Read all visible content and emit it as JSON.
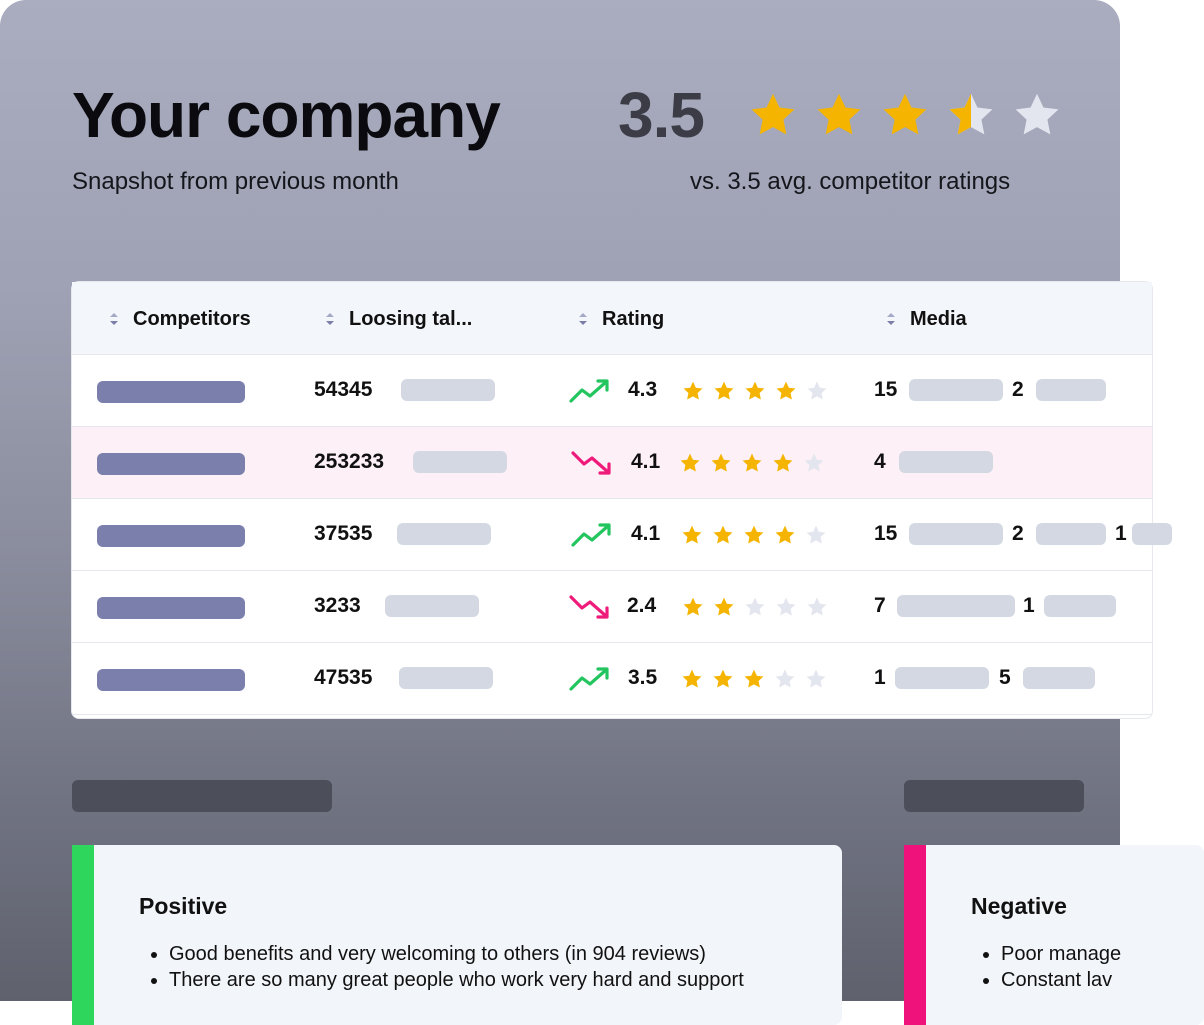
{
  "header": {
    "title": "Your company",
    "subtitle": "Snapshot from previous month",
    "score": "3.5",
    "rating_value": 3.5,
    "comparison": "vs. 3.5 avg. competitor ratings"
  },
  "table": {
    "columns": [
      "Competitors",
      "Loosing tal...",
      "Rating",
      "Media"
    ],
    "rows": [
      {
        "talent": "54345",
        "trend": "up",
        "rating": "4.3",
        "stars": 4,
        "media": [
          "15",
          "2"
        ],
        "highlight": false
      },
      {
        "talent": "253233",
        "trend": "down",
        "rating": "4.1",
        "stars": 4,
        "media": [
          "4"
        ],
        "highlight": true
      },
      {
        "talent": "37535",
        "trend": "up",
        "rating": "4.1",
        "stars": 4,
        "media": [
          "15",
          "2",
          "1"
        ],
        "highlight": false
      },
      {
        "talent": "3233",
        "trend": "down",
        "rating": "2.4",
        "stars": 2,
        "media": [
          "7",
          "1"
        ],
        "highlight": false
      },
      {
        "talent": "47535",
        "trend": "up",
        "rating": "3.5",
        "stars": 3,
        "media": [
          "1",
          "5"
        ],
        "highlight": false
      }
    ]
  },
  "positive": {
    "title": "Positive",
    "items": [
      "Good benefits and very welcoming to others (in 904 reviews)",
      "There are so many great people who work very hard and support"
    ]
  },
  "negative": {
    "title": "Negative",
    "items": [
      "Poor manage",
      "Constant lav"
    ]
  },
  "colors": {
    "star_gold": "#f5b400",
    "star_empty": "#e3e6ee",
    "trend_up": "#22c55e",
    "trend_down": "#ee1b7b",
    "positive_accent": "#2fd65c",
    "negative_accent": "#f0127b",
    "name_bar": "#7a7fac"
  }
}
